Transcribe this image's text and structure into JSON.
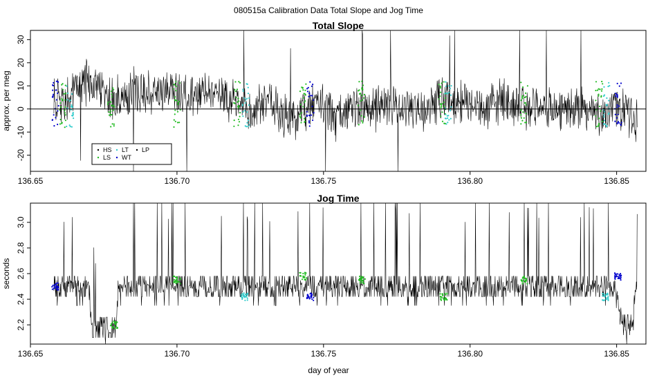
{
  "page": {
    "main_title": "080515a   Calibration Data Total Slope and Jog Time"
  },
  "colors": {
    "HS": "#000000",
    "LS": "#22bb22",
    "LT": "#33cccc",
    "WT": "#0000cc",
    "LP": "#000000"
  },
  "chart_data": [
    {
      "type": "line",
      "title": "Total Slope",
      "xlabel": "",
      "ylabel": "approx. per meg",
      "xlim": [
        136.65,
        136.86
      ],
      "ylim": [
        -27,
        34
      ],
      "x_ticks": [
        "136.65",
        "136.70",
        "136.75",
        "136.80",
        "136.85"
      ],
      "y_ticks": [
        "-20",
        "-10",
        "0",
        "10",
        "20",
        "30"
      ],
      "reference_line_y": 0,
      "legend": {
        "placement": "bottom-left",
        "entries": [
          "HS",
          "LS",
          "LT",
          "WT",
          "LP"
        ]
      },
      "series": [
        {
          "name": "total slope",
          "x": [
            136.658,
            136.662,
            136.666,
            136.67,
            136.674,
            136.678,
            136.682,
            136.686,
            136.69,
            136.694,
            136.698,
            136.702,
            136.706,
            136.71,
            136.714,
            136.718,
            136.722,
            136.726,
            136.73,
            136.734,
            136.738,
            136.742,
            136.746,
            136.75,
            136.754,
            136.758,
            136.762,
            136.766,
            136.77,
            136.774,
            136.778,
            136.782,
            136.786,
            136.79,
            136.794,
            136.798,
            136.802,
            136.806,
            136.81,
            136.814,
            136.818,
            136.822,
            136.826,
            136.83,
            136.834,
            136.838,
            136.842,
            136.846,
            136.85,
            136.854,
            136.857
          ],
          "y": [
            3,
            2,
            10,
            12,
            8,
            4,
            6,
            9,
            7,
            9,
            8,
            6,
            5,
            9,
            6,
            5,
            3,
            -2,
            3,
            1,
            -5,
            -2,
            2,
            3,
            -5,
            1,
            0,
            -2,
            3,
            2,
            0,
            1,
            0,
            5,
            3,
            2,
            1,
            0,
            4,
            3,
            1,
            1,
            2,
            -1,
            0,
            1,
            -2,
            -3,
            2,
            -2,
            -5
          ]
        }
      ],
      "markers": [
        {
          "x": 136.6585,
          "type": "WT"
        },
        {
          "x": 136.661,
          "type": "LS"
        },
        {
          "x": 136.6635,
          "type": "LT"
        },
        {
          "x": 136.6775,
          "type": "LS"
        },
        {
          "x": 136.7,
          "type": "LS"
        },
        {
          "x": 136.7205,
          "type": "LS"
        },
        {
          "x": 136.7235,
          "type": "LT"
        },
        {
          "x": 136.743,
          "type": "LS"
        },
        {
          "x": 136.7455,
          "type": "WT"
        },
        {
          "x": 136.763,
          "type": "LS"
        },
        {
          "x": 136.7905,
          "type": "LS"
        },
        {
          "x": 136.7925,
          "type": "LT"
        },
        {
          "x": 136.8185,
          "type": "LS"
        },
        {
          "x": 136.844,
          "type": "LS"
        },
        {
          "x": 136.8465,
          "type": "LT"
        },
        {
          "x": 136.8505,
          "type": "WT"
        }
      ]
    },
    {
      "type": "line",
      "title": "Jog Time",
      "xlabel": "day of year",
      "ylabel": "seconds",
      "xlim": [
        136.65,
        136.86
      ],
      "ylim": [
        2.05,
        3.15
      ],
      "x_ticks": [
        "136.65",
        "136.70",
        "136.75",
        "136.80",
        "136.85"
      ],
      "y_ticks": [
        "2.2",
        "2.4",
        "2.6",
        "2.8",
        "3.0"
      ],
      "series": [
        {
          "name": "jog time",
          "x": [
            136.658,
            136.67,
            136.671,
            136.679,
            136.68,
            136.7,
            136.72,
            136.74,
            136.76,
            136.78,
            136.8,
            136.82,
            136.84,
            136.849,
            136.852,
            136.855,
            136.857
          ],
          "y": [
            2.5,
            2.5,
            2.18,
            2.18,
            2.5,
            2.5,
            2.5,
            2.5,
            2.5,
            2.5,
            2.5,
            2.5,
            2.5,
            2.5,
            2.2,
            2.2,
            2.5
          ]
        }
      ],
      "markers": [
        {
          "x": 136.6585,
          "y": 2.5,
          "type": "WT"
        },
        {
          "x": 136.6785,
          "y": 2.2,
          "type": "LS"
        },
        {
          "x": 136.7,
          "y": 2.55,
          "type": "LS"
        },
        {
          "x": 136.723,
          "y": 2.42,
          "type": "LT"
        },
        {
          "x": 136.743,
          "y": 2.58,
          "type": "LS"
        },
        {
          "x": 136.7455,
          "y": 2.42,
          "type": "WT"
        },
        {
          "x": 136.763,
          "y": 2.55,
          "type": "LS"
        },
        {
          "x": 136.791,
          "y": 2.42,
          "type": "LS"
        },
        {
          "x": 136.8185,
          "y": 2.55,
          "type": "LS"
        },
        {
          "x": 136.846,
          "y": 2.42,
          "type": "LT"
        },
        {
          "x": 136.8505,
          "y": 2.58,
          "type": "WT"
        }
      ]
    }
  ]
}
